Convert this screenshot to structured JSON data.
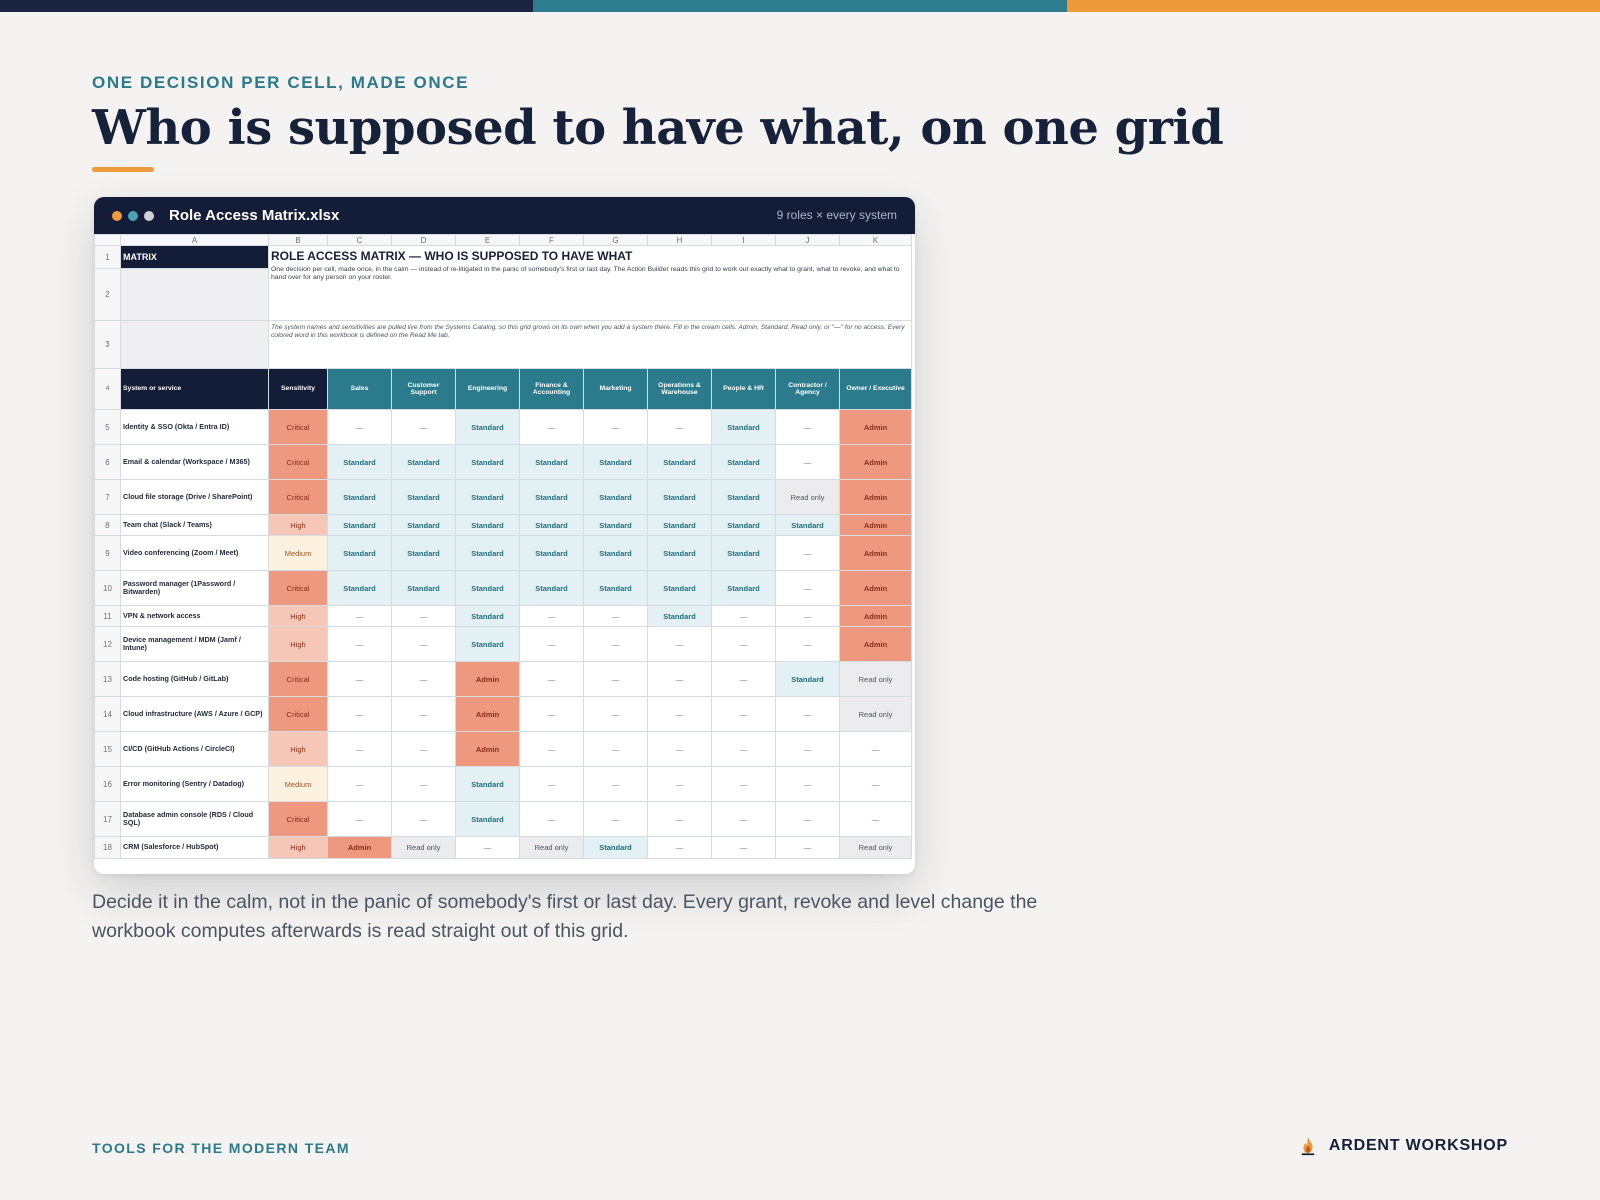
{
  "colors": {
    "bar_navy": "#1b2540",
    "bar_teal": "#2e7d8e",
    "bar_orange": "#ec9a3a",
    "dot_orange": "#ec9a3a",
    "dot_teal": "#4aa3b5",
    "dot_gray": "#cfd3da"
  },
  "eyebrow": "ONE DECISION PER CELL, MADE ONCE",
  "title": "Who is supposed to have what, on one grid",
  "window": {
    "title": "Role Access Matrix.xlsx",
    "meta": "9 roles × every system"
  },
  "sheet": {
    "columns": [
      "A",
      "B",
      "C",
      "D",
      "E",
      "F",
      "G",
      "H",
      "I",
      "J",
      "K"
    ],
    "matrix_label": "MATRIX",
    "banner_title": "ROLE ACCESS MATRIX — WHO IS SUPPOSED TO HAVE WHAT",
    "banner_desc": "One decision per cell, made once, in the calm — instead of re-litigated in the panic of somebody's first or last day. The Action Builder reads this grid to work out exactly what to grant, what to revoke, and what to hand over for any person on your roster.",
    "banner_note": "The system names and sensitivities are pulled live from the Systems Catalog, so this grid grows on its own when you add a system there. Fill in the cream cells: Admin, Standard, Read only, or \"—\" for no access. Every colored word in this workbook is defined on the Read Me tab.",
    "headers": [
      "System or service",
      "Sensitivity",
      "Sales",
      "Customer Support",
      "Engineering",
      "Finance & Accounting",
      "Marketing",
      "Operations & Warehouse",
      "People & HR",
      "Contractor / Agency",
      "Owner / Executive"
    ],
    "rows": [
      {
        "n": "5",
        "system": "Identity & SSO (Okta / Entra ID)",
        "sensitivity": "Critical",
        "cells": [
          "—",
          "—",
          "Standard",
          "—",
          "—",
          "—",
          "Standard",
          "—",
          "Admin"
        ]
      },
      {
        "n": "6",
        "system": "Email & calendar (Workspace / M365)",
        "sensitivity": "Critical",
        "cells": [
          "Standard",
          "Standard",
          "Standard",
          "Standard",
          "Standard",
          "Standard",
          "Standard",
          "—",
          "Admin"
        ]
      },
      {
        "n": "7",
        "system": "Cloud file storage (Drive / SharePoint)",
        "sensitivity": "Critical",
        "cells": [
          "Standard",
          "Standard",
          "Standard",
          "Standard",
          "Standard",
          "Standard",
          "Standard",
          "Read only",
          "Admin"
        ]
      },
      {
        "n": "8",
        "system": "Team chat (Slack / Teams)",
        "sensitivity": "High",
        "cells": [
          "Standard",
          "Standard",
          "Standard",
          "Standard",
          "Standard",
          "Standard",
          "Standard",
          "Standard",
          "Admin"
        ]
      },
      {
        "n": "9",
        "system": "Video conferencing (Zoom / Meet)",
        "sensitivity": "Medium",
        "cells": [
          "Standard",
          "Standard",
          "Standard",
          "Standard",
          "Standard",
          "Standard",
          "Standard",
          "—",
          "Admin"
        ]
      },
      {
        "n": "10",
        "system": "Password manager (1Password / Bitwarden)",
        "sensitivity": "Critical",
        "cells": [
          "Standard",
          "Standard",
          "Standard",
          "Standard",
          "Standard",
          "Standard",
          "Standard",
          "—",
          "Admin"
        ]
      },
      {
        "n": "11",
        "system": "VPN & network access",
        "sensitivity": "High",
        "cells": [
          "—",
          "—",
          "Standard",
          "—",
          "—",
          "Standard",
          "—",
          "—",
          "Admin"
        ]
      },
      {
        "n": "12",
        "system": "Device management / MDM (Jamf / Intune)",
        "sensitivity": "High",
        "cells": [
          "—",
          "—",
          "Standard",
          "—",
          "—",
          "—",
          "—",
          "—",
          "Admin"
        ]
      },
      {
        "n": "13",
        "system": "Code hosting (GitHub / GitLab)",
        "sensitivity": "Critical",
        "cells": [
          "—",
          "—",
          "Admin",
          "—",
          "—",
          "—",
          "—",
          "Standard",
          "Read only"
        ]
      },
      {
        "n": "14",
        "system": "Cloud infrastructure (AWS / Azure / GCP)",
        "sensitivity": "Critical",
        "cells": [
          "—",
          "—",
          "Admin",
          "—",
          "—",
          "—",
          "—",
          "—",
          "Read only"
        ]
      },
      {
        "n": "15",
        "system": "CI/CD (GitHub Actions / CircleCI)",
        "sensitivity": "High",
        "cells": [
          "—",
          "—",
          "Admin",
          "—",
          "—",
          "—",
          "—",
          "—",
          "—"
        ]
      },
      {
        "n": "16",
        "system": "Error monitoring (Sentry / Datadog)",
        "sensitivity": "Medium",
        "cells": [
          "—",
          "—",
          "Standard",
          "—",
          "—",
          "—",
          "—",
          "—",
          "—"
        ]
      },
      {
        "n": "17",
        "system": "Database admin console (RDS / Cloud SQL)",
        "sensitivity": "Critical",
        "cells": [
          "—",
          "—",
          "Standard",
          "—",
          "—",
          "—",
          "—",
          "—",
          "—"
        ]
      },
      {
        "n": "18",
        "system": "CRM (Salesforce / HubSpot)",
        "sensitivity": "High",
        "cells": [
          "Admin",
          "Read only",
          "—",
          "Read only",
          "Standard",
          "—",
          "—",
          "—",
          "Read only"
        ]
      }
    ]
  },
  "caption": "Decide it in the calm, not in the panic of somebody's first or last day. Every grant, revoke and level change the workbook computes afterwards is read straight out of this grid.",
  "footer": {
    "left": "TOOLS FOR THE MODERN TEAM",
    "brand": "ARDENT WORKSHOP",
    "brand_icon": "flame-icon"
  }
}
